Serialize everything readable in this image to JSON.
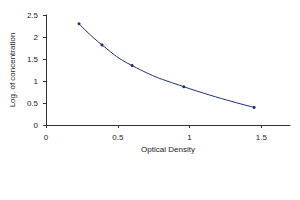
{
  "chart_data": {
    "type": "line",
    "x_label": "Optical Density",
    "y_label": "Log. of concentration",
    "x": [
      0.23,
      0.39,
      0.6,
      0.96,
      1.45
    ],
    "values": [
      2.3,
      1.82,
      1.35,
      0.87,
      0.4
    ],
    "color": "#1f2f7a",
    "marker": "circle",
    "line_style": "solid",
    "xlim": [
      0,
      1.7
    ],
    "xticks": [
      0,
      0.5,
      1,
      1.5
    ],
    "ylim": [
      0,
      2.5
    ],
    "yticks": [
      0,
      0.5,
      1,
      1.5,
      2,
      2.5
    ],
    "grid": false
  }
}
